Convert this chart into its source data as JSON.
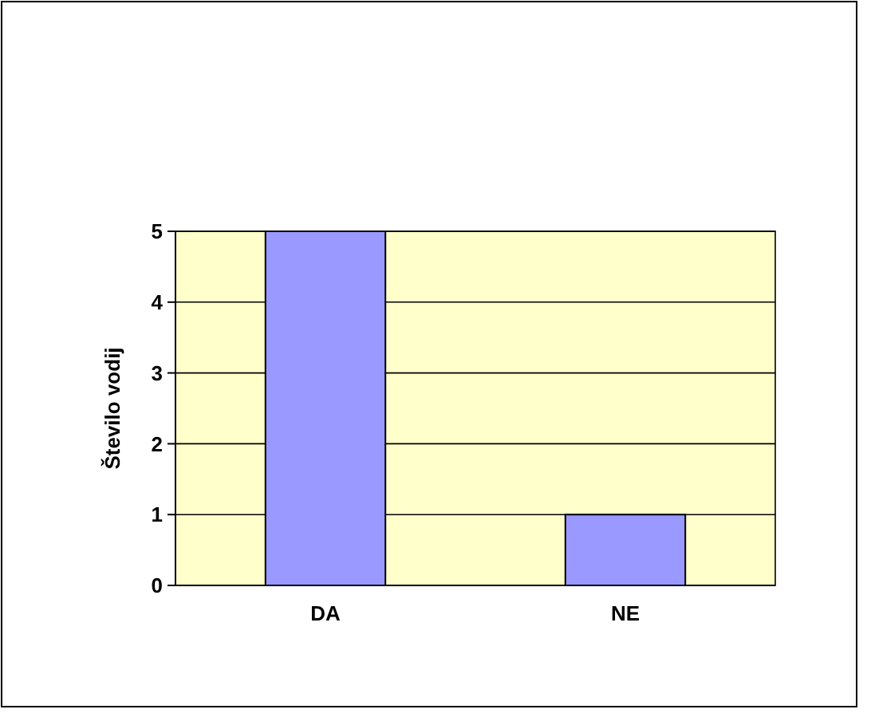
{
  "chart_data": {
    "type": "bar",
    "ylabel": "Število vodij",
    "categories": [
      "DA",
      "NE"
    ],
    "values": [
      5,
      1
    ],
    "color": "#9999ff",
    "ylim": [
      0,
      5
    ],
    "yticks": [
      0,
      1,
      2,
      3,
      4,
      5
    ],
    "grid": "y"
  }
}
